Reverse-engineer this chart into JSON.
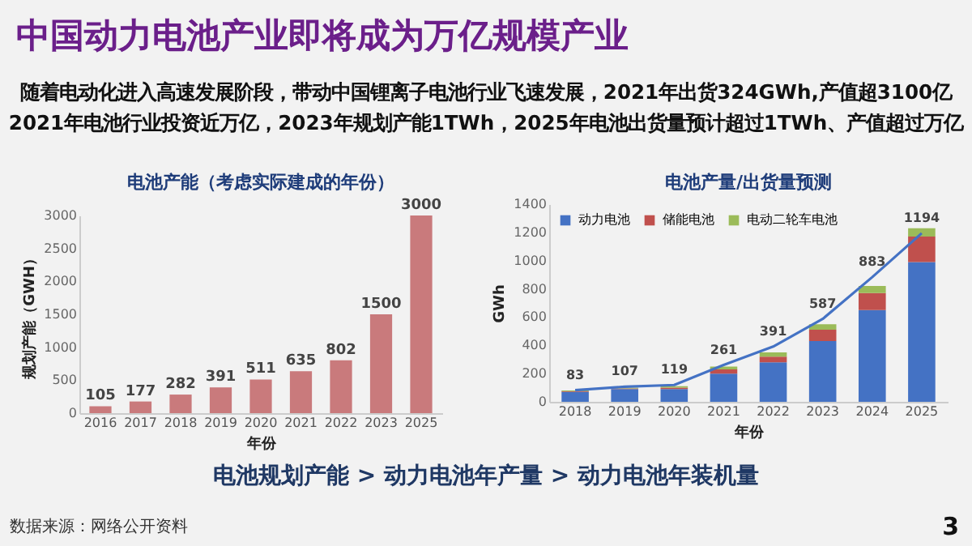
{
  "chart_data": [
    {
      "type": "other",
      "title": "中国动力电池产业即将成为万亿规模产业",
      "annotations": [
        "随着电动化进入高速发展阶段，带动中国锂离子电池行业飞速发展，2021年出货324GWh,产值超3100亿",
        "2021年电池行业投资近万亿，2023年规划产能1TWh，2025年电池出货量预计超过1TWh、产值超过万亿",
        "电池规划产能 > 动力电池年产量 > 动力电池年装机量",
        "数据来源：网络公开资料",
        "3"
      ]
    },
    {
      "type": "bar",
      "title": "电池产能（考虑实际建成的年份）",
      "xlabel": "年份",
      "ylabel": "规划产能（GWH）",
      "categories": [
        "2016",
        "2017",
        "2018",
        "2019",
        "2020",
        "2021",
        "2022",
        "2023",
        "2025"
      ],
      "values": [
        105,
        177,
        282,
        391,
        511,
        635,
        802,
        1500,
        3000
      ],
      "color": "#c97a7c",
      "data_labels": true,
      "ylim": [
        0,
        3000
      ],
      "yticks": [
        0,
        500,
        1000,
        1500,
        2000,
        2500,
        3000
      ]
    },
    {
      "type": "bar",
      "title": "电池产量/出货量预测",
      "xlabel": "年份",
      "ylabel": "GWh",
      "categories": [
        "2018",
        "2019",
        "2020",
        "2021",
        "2022",
        "2023",
        "2024",
        "2025"
      ],
      "stacked": true,
      "legend": "top left",
      "ylim": [
        0,
        1400
      ],
      "yticks": [
        0,
        200,
        400,
        600,
        800,
        1000,
        1200,
        1400
      ],
      "series": [
        {
          "name": "动力电池",
          "color": "#4472c4",
          "values": [
            70,
            90,
            90,
            200,
            280,
            430,
            650,
            990
          ]
        },
        {
          "name": "储能电池",
          "color": "#c0504d",
          "values": [
            5,
            5,
            10,
            30,
            40,
            80,
            120,
            180
          ]
        },
        {
          "name": "电动二轮车电池",
          "color": "#9bbb59",
          "values": [
            5,
            5,
            10,
            20,
            30,
            40,
            50,
            60
          ]
        },
        {
          "type": "line",
          "color": "#4472c4",
          "values": [
            83,
            107,
            119,
            261,
            391,
            587,
            883,
            1194
          ],
          "value_labels": [
            "83",
            "107",
            "119",
            "261",
            "391",
            "587",
            "883",
            "1194"
          ]
        }
      ]
    }
  ]
}
